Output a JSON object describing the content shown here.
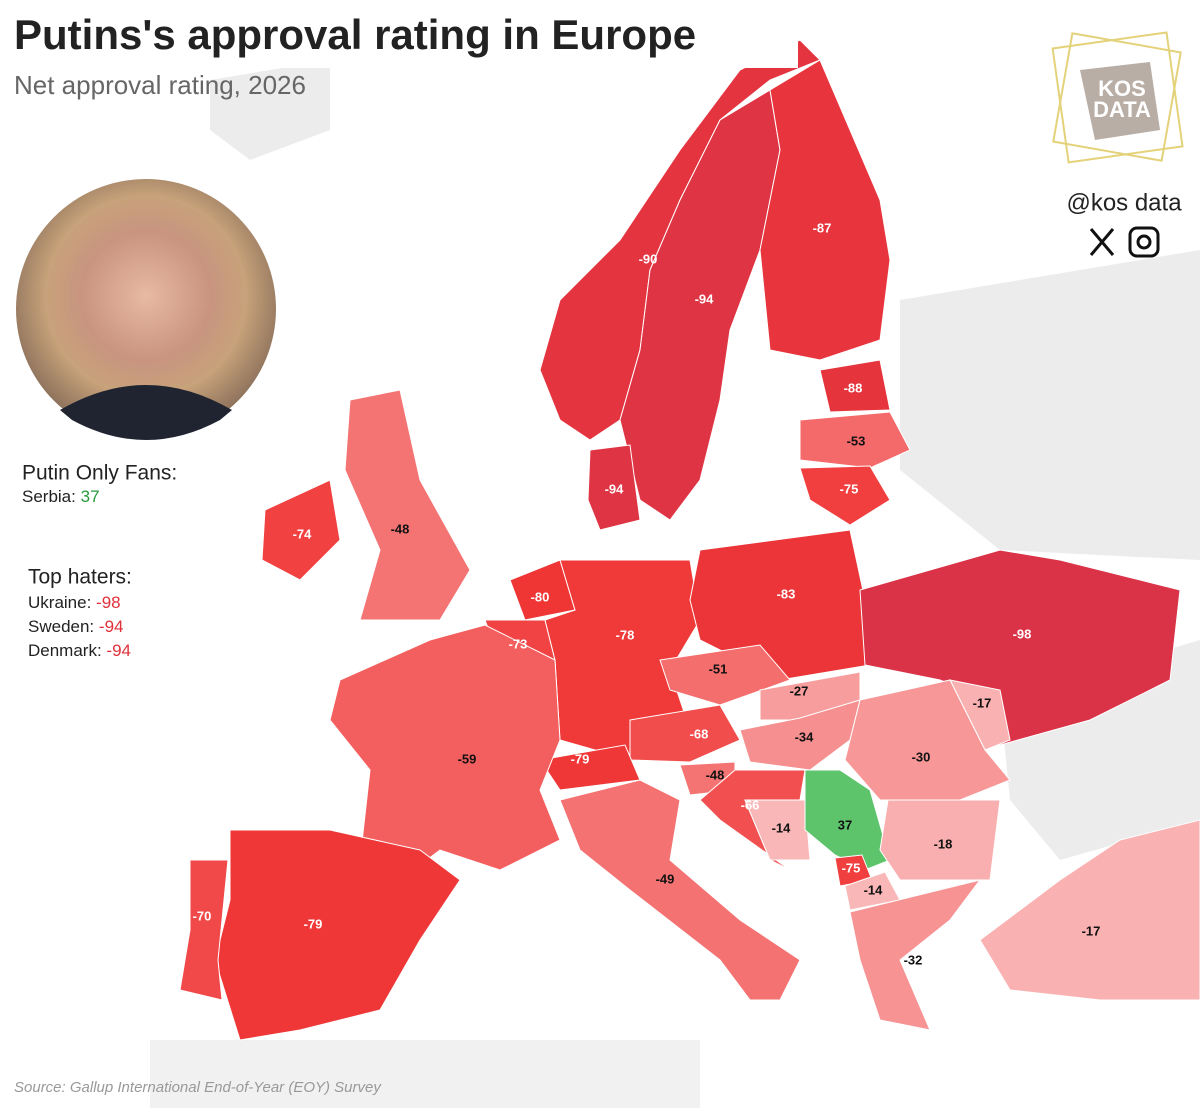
{
  "title": "Putins's approval rating in Europe",
  "subtitle": "Net approval rating, 2026",
  "logo": [
    "KOS",
    "DATA"
  ],
  "handle": "@kos data",
  "source": "Source: Gallup International End-of-Year (EOY) Survey",
  "fans": {
    "heading": "Putin Only Fans:",
    "items": [
      {
        "label": "Serbia:",
        "value": 37
      }
    ]
  },
  "haters": {
    "heading": "Top haters:",
    "items": [
      {
        "label": "Ukraine:",
        "value": -98
      },
      {
        "label": "Sweden:",
        "value": -94
      },
      {
        "label": "Denmark:",
        "value": -94
      }
    ]
  },
  "map": {
    "values": [
      -90,
      -94,
      -87,
      -88,
      -53,
      -75,
      -94,
      -74,
      -48,
      -80,
      -73,
      -78,
      -83,
      -98,
      -51,
      -27,
      -17,
      -68,
      -79,
      -34,
      -30,
      -59,
      -48,
      -66,
      -14,
      37,
      -75,
      -14,
      -18,
      -49,
      -79,
      -70,
      -32,
      -17
    ]
  }
}
